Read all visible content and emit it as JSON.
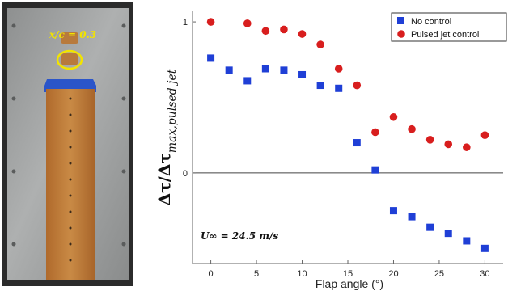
{
  "photo": {
    "label": "x/c = 0.3"
  },
  "chart_data": {
    "type": "scatter",
    "xlabel": "Flap angle (°)",
    "ylabel": "Δτ/Δτ",
    "ylabel_subscript": "max,pulsed jet",
    "xlim": [
      -2,
      32
    ],
    "ylim": [
      -0.6,
      1.07
    ],
    "x_ticks": [
      0,
      5,
      10,
      15,
      20,
      25,
      30
    ],
    "y_ticks": [
      0,
      1
    ],
    "legend_position": "top-right",
    "annotation": "U∞ = 24.5 m/s",
    "series": [
      {
        "name": "No control",
        "marker": "square",
        "color": "#1f3fd6",
        "x": [
          0,
          2,
          4,
          6,
          8,
          10,
          12,
          14,
          16,
          18,
          20,
          22,
          24,
          26,
          28,
          30
        ],
        "y": [
          0.76,
          0.68,
          0.61,
          0.69,
          0.68,
          0.65,
          0.58,
          0.56,
          0.2,
          0.02,
          -0.25,
          -0.29,
          -0.36,
          -0.4,
          -0.45,
          -0.5
        ]
      },
      {
        "name": "Pulsed jet control",
        "marker": "circle",
        "color": "#d81e1e",
        "x": [
          0,
          4,
          6,
          8,
          10,
          12,
          14,
          16,
          18,
          20,
          22,
          24,
          26,
          28,
          30
        ],
        "y": [
          1.0,
          0.99,
          0.94,
          0.95,
          0.92,
          0.85,
          0.69,
          0.58,
          0.27,
          0.37,
          0.29,
          0.22,
          0.19,
          0.17,
          0.25
        ]
      }
    ]
  }
}
